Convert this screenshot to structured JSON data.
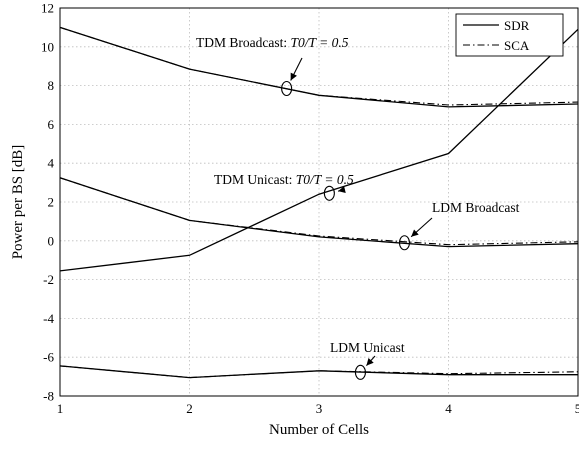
{
  "chart_data": {
    "type": "line",
    "xlabel": "Number of Cells",
    "ylabel": "Power per BS [dB]",
    "xlim": [
      1,
      5
    ],
    "ylim": [
      -8,
      12
    ],
    "xticks": [
      1,
      2,
      3,
      4,
      5
    ],
    "yticks": [
      -8,
      -6,
      -4,
      -2,
      0,
      2,
      4,
      6,
      8,
      10,
      12
    ],
    "grid": true,
    "legend_position": "top-right",
    "x": [
      1,
      2,
      3,
      4,
      5
    ],
    "series": [
      {
        "name": "SDR",
        "style": "solid",
        "group": "TDM Broadcast",
        "values": [
          11.0,
          8.85,
          7.5,
          6.9,
          7.05
        ]
      },
      {
        "name": "SCA",
        "style": "dashdot",
        "group": "TDM Broadcast",
        "values": [
          11.0,
          8.85,
          7.5,
          7.0,
          7.15
        ]
      },
      {
        "name": "SDR",
        "style": "solid",
        "group": "TDM Unicast",
        "values": [
          -1.55,
          -0.75,
          2.4,
          4.5,
          10.9
        ]
      },
      {
        "name": "SDR",
        "style": "solid",
        "group": "LDM Broadcast",
        "values": [
          3.25,
          1.05,
          0.2,
          -0.3,
          -0.15
        ]
      },
      {
        "name": "SCA",
        "style": "dashdot",
        "group": "LDM Broadcast",
        "values": [
          3.25,
          1.05,
          0.25,
          -0.2,
          -0.05
        ]
      },
      {
        "name": "SDR",
        "style": "solid",
        "group": "LDM Unicast",
        "values": [
          -6.45,
          -7.05,
          -6.7,
          -6.9,
          -6.9
        ]
      },
      {
        "name": "SCA",
        "style": "dashdot",
        "group": "LDM Unicast",
        "values": [
          -6.45,
          -7.05,
          -6.7,
          -6.85,
          -6.75
        ]
      }
    ],
    "legend": [
      {
        "label": "SDR",
        "style": "solid"
      },
      {
        "label": "SCA",
        "style": "dashdot"
      }
    ],
    "annotations": [
      {
        "prefix": "TDM Broadcast: ",
        "math": "T0/T = 0.5",
        "target_x": 2.75,
        "target_y": 7.85
      },
      {
        "prefix": "TDM Unicast: ",
        "math": "T0/T = 0.5",
        "target_x": 3.08,
        "target_y": 2.45
      },
      {
        "prefix": "LDM Broadcast",
        "math": "",
        "target_x": 3.66,
        "target_y": -0.1
      },
      {
        "prefix": "LDM Unicast",
        "math": "",
        "target_x": 3.32,
        "target_y": -6.78
      }
    ]
  }
}
